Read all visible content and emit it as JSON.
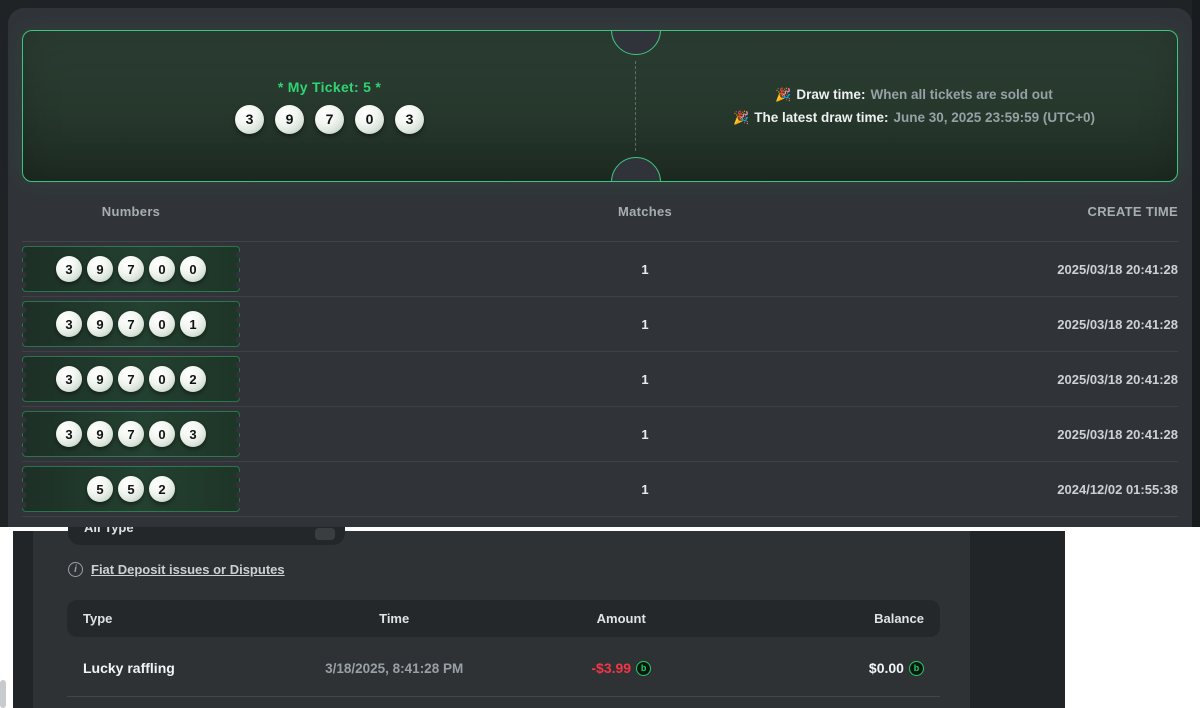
{
  "lottery": {
    "ticket": {
      "title": "* My Ticket: 5 *",
      "numbers": [
        "3",
        "9",
        "7",
        "0",
        "3"
      ],
      "emoji": "🎉",
      "draw_time_label": "Draw time:",
      "draw_time_value": "When all tickets are sold out",
      "latest_draw_label": "The latest draw time:",
      "latest_draw_value": "June 30, 2025 23:59:59 (UTC+0)"
    },
    "table": {
      "headers": {
        "numbers": "Numbers",
        "matches": "Matches",
        "create_time": "CREATE TIME"
      },
      "rows": [
        {
          "numbers": [
            "3",
            "9",
            "7",
            "0",
            "0"
          ],
          "matches": "1",
          "create_time": "2025/03/18 20:41:28"
        },
        {
          "numbers": [
            "3",
            "9",
            "7",
            "0",
            "1"
          ],
          "matches": "1",
          "create_time": "2025/03/18 20:41:28"
        },
        {
          "numbers": [
            "3",
            "9",
            "7",
            "0",
            "2"
          ],
          "matches": "1",
          "create_time": "2025/03/18 20:41:28"
        },
        {
          "numbers": [
            "3",
            "9",
            "7",
            "0",
            "3"
          ],
          "matches": "1",
          "create_time": "2025/03/18 20:41:28"
        },
        {
          "numbers": [
            "5",
            "5",
            "2"
          ],
          "matches": "1",
          "create_time": "2024/12/02 01:55:38"
        }
      ]
    }
  },
  "wallet": {
    "filter_value": "All Type",
    "dispute_link": "Fiat Deposit issues or Disputes",
    "table": {
      "headers": {
        "type": "Type",
        "time": "Time",
        "amount": "Amount",
        "balance": "Balance"
      },
      "rows": [
        {
          "type": "Lucky raffling",
          "time": "3/18/2025, 8:41:28 PM",
          "amount": "-$3.99",
          "balance": "$0.00"
        }
      ]
    }
  },
  "icons": {
    "info_glyph": "i",
    "coin_glyph": "b"
  },
  "colors": {
    "accent_green": "#3ec47c",
    "ticket_title_green": "#2fd573",
    "negative_red": "#f23645",
    "coin_green": "#1ed25f"
  }
}
